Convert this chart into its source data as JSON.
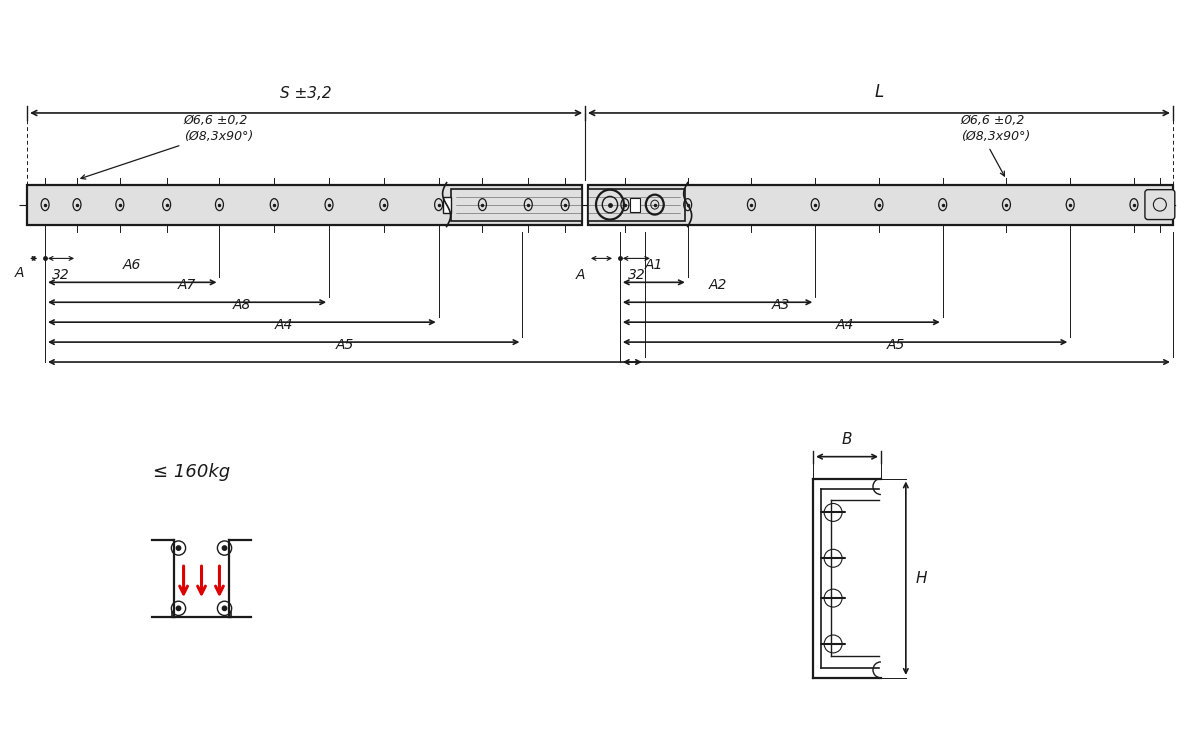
{
  "bg_color": "#ffffff",
  "line_color": "#1a1a1a",
  "gray_fill": "#c8c8c8",
  "light_gray": "#e0e0e0",
  "mid_gray": "#b0b0b0",
  "dark_gray": "#888888",
  "red_color": "#dd0000",
  "label_S": "S ±3,2",
  "label_L": "L",
  "label_hole_left": "Ø6,6 ±0,2\n(Ø8,3x90°)",
  "label_hole_right": "Ø6,6 ±0,2\n(Ø8,3x90°)",
  "label_A": "A",
  "label_32": "32",
  "label_A1": "A1",
  "label_A2": "A2",
  "label_A3": "A3",
  "label_A4": "A4",
  "label_A5": "A5",
  "label_A6": "A6",
  "label_A7": "A7",
  "label_A8": "A8",
  "label_B": "B",
  "label_H": "H",
  "label_load": "≤ 160kg",
  "font_size_dim": 11,
  "font_size_small": 10
}
